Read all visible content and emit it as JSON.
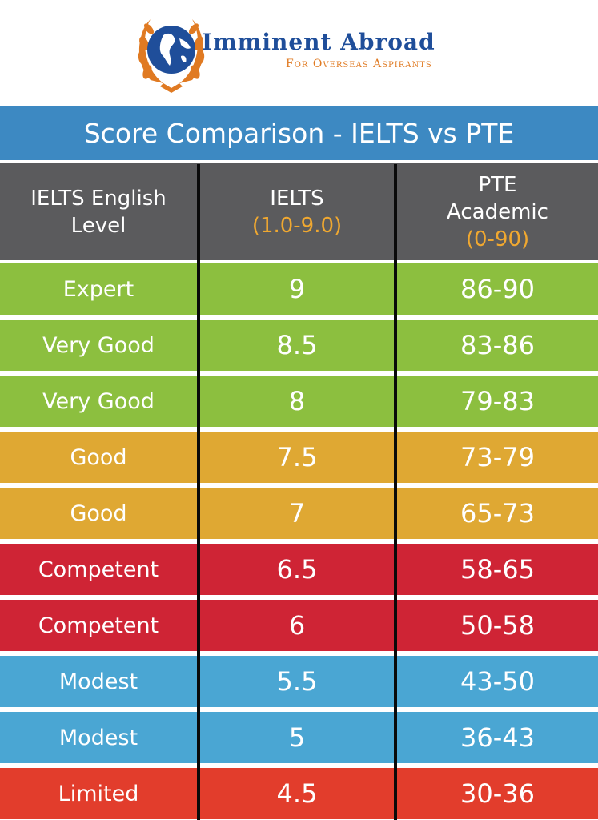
{
  "logo": {
    "name": "Imminent Abroad",
    "tagline": "For Overseas Aspirants"
  },
  "title": "Score Comparison - IELTS vs PTE",
  "headers": {
    "level": [
      "IELTS English",
      "Level"
    ],
    "ielts": [
      "IELTS",
      "(1.0-9.0)"
    ],
    "pte": [
      "PTE",
      "Academic",
      "(0-90)"
    ]
  },
  "rows": [
    {
      "level": "Expert",
      "ielts": "9",
      "pte": "86-90",
      "color": "#8cbf3f"
    },
    {
      "level": "Very Good",
      "ielts": "8.5",
      "pte": "83-86",
      "color": "#8cbf3f"
    },
    {
      "level": "Very Good",
      "ielts": "8",
      "pte": "79-83",
      "color": "#8cbf3f"
    },
    {
      "level": "Good",
      "ielts": "7.5",
      "pte": "73-79",
      "color": "#dfa833"
    },
    {
      "level": "Good",
      "ielts": "7",
      "pte": "65-73",
      "color": "#dfa833"
    },
    {
      "level": "Competent",
      "ielts": "6.5",
      "pte": "58-65",
      "color": "#cf2435"
    },
    {
      "level": "Competent",
      "ielts": "6",
      "pte": "50-58",
      "color": "#cf2435"
    },
    {
      "level": "Modest",
      "ielts": "5.5",
      "pte": "43-50",
      "color": "#4aa6d3"
    },
    {
      "level": "Modest",
      "ielts": "5",
      "pte": "36-43",
      "color": "#4aa6d3"
    },
    {
      "level": "Limited",
      "ielts": "4.5",
      "pte": "30-36",
      "color": "#e23d2c"
    }
  ],
  "colors": {
    "title_bg": "#3d89c2",
    "header_bg": "#5b5b5d",
    "header_range": "#f0a830",
    "brand_blue": "#1f4e9a",
    "brand_orange": "#e07a22"
  }
}
